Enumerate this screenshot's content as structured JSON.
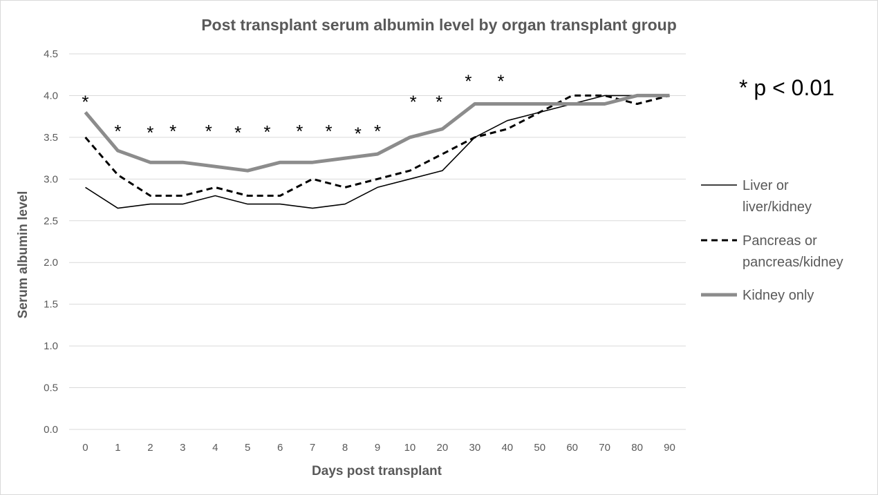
{
  "chart_data": {
    "type": "line",
    "title": "Post transplant serum albumin level by organ transplant group",
    "xlabel": "Days post transplant",
    "ylabel": "Serum albumin level",
    "categories": [
      "0",
      "1",
      "2",
      "3",
      "4",
      "5",
      "6",
      "7",
      "8",
      "9",
      "10",
      "20",
      "30",
      "40",
      "50",
      "60",
      "70",
      "80",
      "90"
    ],
    "ylim": [
      0,
      4.5
    ],
    "yticks": [
      "0.0",
      "0.5",
      "1.0",
      "1.5",
      "2.0",
      "2.5",
      "3.0",
      "3.5",
      "4.0",
      "4.5"
    ],
    "grid": "horizontal",
    "legend_position": "right",
    "series": [
      {
        "name": "Liver or liver/kidney",
        "legend_lines": [
          "Liver or",
          "liver/kidney"
        ],
        "style": "solid-thin",
        "color": "#000000",
        "values": [
          2.9,
          2.65,
          2.7,
          2.7,
          2.8,
          2.7,
          2.7,
          2.65,
          2.7,
          2.9,
          3.0,
          3.1,
          3.5,
          3.7,
          3.8,
          3.9,
          4.0,
          4.0,
          4.0
        ]
      },
      {
        "name": "Pancreas or pancreas/kidney",
        "legend_lines": [
          "Pancreas or",
          "pancreas/kidney"
        ],
        "style": "dashed",
        "color": "#000000",
        "values": [
          3.5,
          3.05,
          2.8,
          2.8,
          2.9,
          2.8,
          2.8,
          3.0,
          2.9,
          3.0,
          3.1,
          3.3,
          3.5,
          3.6,
          3.8,
          4.0,
          4.0,
          3.9,
          4.0
        ]
      },
      {
        "name": "Kidney only",
        "legend_lines": [
          "Kidney only"
        ],
        "style": "solid-thick",
        "color": "#8c8c8c",
        "values": [
          3.8,
          3.34,
          3.2,
          3.2,
          3.15,
          3.1,
          3.2,
          3.2,
          3.25,
          3.3,
          3.5,
          3.6,
          3.9,
          3.9,
          3.9,
          3.9,
          3.9,
          4.0,
          4.0
        ]
      }
    ],
    "significance": {
      "marker": "*",
      "note": "* p < 0.01",
      "marks": [
        {
          "x": 0.0,
          "y": 3.95
        },
        {
          "x": 1.0,
          "y": 3.6
        },
        {
          "x": 2.0,
          "y": 3.58
        },
        {
          "x": 2.7,
          "y": 3.6
        },
        {
          "x": 3.8,
          "y": 3.6
        },
        {
          "x": 4.7,
          "y": 3.58
        },
        {
          "x": 5.6,
          "y": 3.59
        },
        {
          "x": 6.6,
          "y": 3.6
        },
        {
          "x": 7.5,
          "y": 3.6
        },
        {
          "x": 8.4,
          "y": 3.57
        },
        {
          "x": 9.0,
          "y": 3.6
        },
        {
          "x": 10.1,
          "y": 3.95
        },
        {
          "x": 10.9,
          "y": 3.95
        },
        {
          "x": 11.8,
          "y": 4.2
        },
        {
          "x": 12.8,
          "y": 4.2
        }
      ]
    }
  }
}
